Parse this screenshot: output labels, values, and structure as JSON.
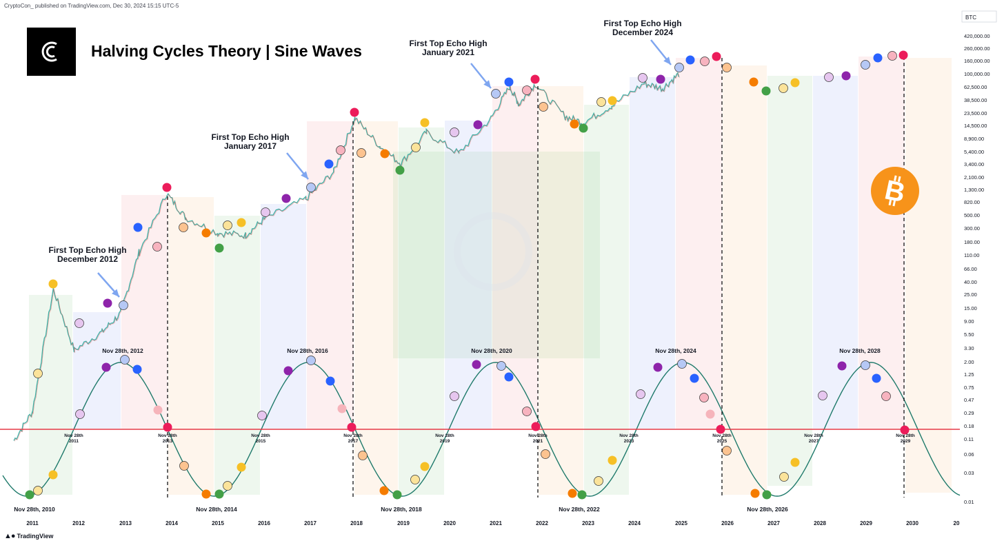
{
  "header": {
    "attribution": "CryptoCon_ published on TradingView.com, Dec 30, 2024 15:15 UTC-5",
    "title": "Halving Cycles Theory | Sine Waves",
    "brand": "TradingView",
    "symbol": "BTC"
  },
  "colors": {
    "sine": "#1f7a6b",
    "baseline": "#e53946",
    "candle_up": "#26a69a",
    "candle_down": "#ef5350",
    "logo_bg": "#000000",
    "bitcoin": "#f7931a"
  },
  "icons": [
    "cryptocon-logo-icon",
    "bitcoin-icon",
    "tradingview-logo-icon"
  ],
  "chart_data": {
    "type": "line",
    "y_scale": "log",
    "x_ticks": [
      "2011",
      "2012",
      "2013",
      "2014",
      "2015",
      "2016",
      "2017",
      "2018",
      "2019",
      "2020",
      "2021",
      "2022",
      "2023",
      "2024",
      "2025",
      "2026",
      "2027",
      "2028",
      "2029",
      "2030",
      "20"
    ],
    "y_ticks": [
      "420,000.00",
      "260,000.00",
      "160,000.00",
      "100,000.00",
      "62,500.00",
      "38,500.00",
      "23,500.00",
      "14,500.00",
      "8,900.00",
      "5,400.00",
      "3,400.00",
      "2,100.00",
      "1,300.00",
      "820.00",
      "500.00",
      "300.00",
      "180.00",
      "110.00",
      "66.00",
      "40.00",
      "25.00",
      "15.00",
      "9.00",
      "5.50",
      "3.30",
      "2.00",
      "1.25",
      "0.75",
      "0.47",
      "0.29",
      "0.18",
      "0.11",
      "0.06",
      "0.03",
      "0.01"
    ],
    "price_series": {
      "name": "BTC",
      "points": [
        [
          "2010.6",
          0.1
        ],
        [
          "2011.0",
          0.3
        ],
        [
          "2011.45",
          30
        ],
        [
          "2011.9",
          3
        ],
        [
          "2012.5",
          6
        ],
        [
          "2012.9",
          12
        ],
        [
          "2013.3",
          120
        ],
        [
          "2013.9",
          1100
        ],
        [
          "2014.3",
          450
        ],
        [
          "2015.0",
          250
        ],
        [
          "2015.6",
          230
        ],
        [
          "2016.0",
          420
        ],
        [
          "2016.9",
          900
        ],
        [
          "2017.5",
          2500
        ],
        [
          "2017.96",
          19000
        ],
        [
          "2018.5",
          6500
        ],
        [
          "2018.95",
          3400
        ],
        [
          "2019.5",
          11000
        ],
        [
          "2020.2",
          5000
        ],
        [
          "2020.9",
          19000
        ],
        [
          "2021.3",
          62000
        ],
        [
          "2021.5",
          32000
        ],
        [
          "2021.85",
          68000
        ],
        [
          "2022.5",
          20000
        ],
        [
          "2022.9",
          16000
        ],
        [
          "2023.5",
          30000
        ],
        [
          "2024.2",
          70000
        ],
        [
          "2024.6",
          58000
        ],
        [
          "2024.95",
          100000
        ]
      ]
    },
    "annotations": [
      {
        "line1": "First Top Echo High",
        "line2": "December 2012"
      },
      {
        "line1": "First Top Echo High",
        "line2": "January 2017"
      },
      {
        "line1": "First Top Echo High",
        "line2": "January 2021"
      },
      {
        "line1": "First Top Echo High",
        "line2": "December 2024"
      }
    ],
    "sine_peaks": [
      "Nov 28th, 2012",
      "Nov 28th, 2016",
      "Nov 28th, 2020",
      "Nov 28th, 2024",
      "Nov 28th, 2028"
    ],
    "sine_troughs": [
      "Nov 28th, 2010",
      "Nov 28th, 2014",
      "Nov 28th, 2018",
      "Nov 28th, 2022",
      "Nov 28th, 2026"
    ],
    "crossings": [
      {
        "line1": "Nov 28th",
        "line2": "2011"
      },
      {
        "line1": "Nov 28th",
        "line2": "2013"
      },
      {
        "line1": "Nov 28th",
        "line2": "2015"
      },
      {
        "line1": "Nov 28th",
        "line2": "2017"
      },
      {
        "line1": "Nov 28th",
        "line2": "2019"
      },
      {
        "line1": "Nov 28th",
        "line2": "2021"
      },
      {
        "line1": "Nov 28th",
        "line2": "2023"
      },
      {
        "line1": "Nov 28th",
        "line2": "2025"
      },
      {
        "line1": "Nov 28th",
        "line2": "2027"
      },
      {
        "line1": "Nov 28th",
        "line2": "2029"
      }
    ]
  }
}
